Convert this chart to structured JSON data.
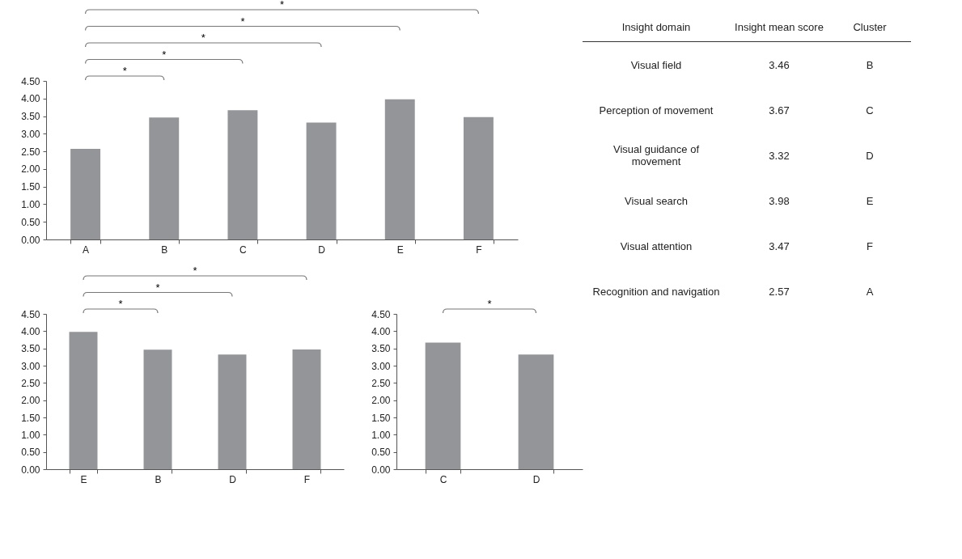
{
  "chart_data": [
    {
      "type": "bar",
      "categories": [
        "A",
        "B",
        "C",
        "D",
        "E",
        "F"
      ],
      "values": [
        2.57,
        3.46,
        3.67,
        3.32,
        3.98,
        3.47
      ],
      "color": "#939598",
      "ylim": [
        0,
        4.5
      ],
      "yticks": [
        {
          "value": 0,
          "label": "0.00"
        },
        {
          "value": 0.5,
          "label": "0.50"
        },
        {
          "value": 1,
          "label": "1.00"
        },
        {
          "value": 1.5,
          "label": "1.50"
        },
        {
          "value": 2,
          "label": "2.00"
        },
        {
          "value": 2.5,
          "label": "2.50"
        },
        {
          "value": 3,
          "label": "3.00"
        },
        {
          "value": 3.5,
          "label": "3.50"
        },
        {
          "value": 4,
          "label": "4.00"
        },
        {
          "value": 4.5,
          "label": "4.50"
        }
      ],
      "annotations": [
        "*",
        "*",
        "*",
        "*",
        "*"
      ]
    },
    {
      "type": "bar",
      "categories": [
        "E",
        "B",
        "D",
        "F"
      ],
      "values": [
        3.98,
        3.46,
        3.32,
        3.47
      ],
      "color": "#939598",
      "ylim": [
        0,
        4.5
      ],
      "yticks": [
        {
          "value": 0,
          "label": "0.00"
        },
        {
          "value": 0.5,
          "label": "0.50"
        },
        {
          "value": 1,
          "label": "1.00"
        },
        {
          "value": 1.5,
          "label": "1.50"
        },
        {
          "value": 2,
          "label": "2.00"
        },
        {
          "value": 2.5,
          "label": "2.50"
        },
        {
          "value": 3,
          "label": "3.00"
        },
        {
          "value": 3.5,
          "label": "3.50"
        },
        {
          "value": 4,
          "label": "4.00"
        },
        {
          "value": 4.5,
          "label": "4.50"
        }
      ],
      "annotations": [
        "*",
        "*",
        "*"
      ]
    },
    {
      "type": "bar",
      "categories": [
        "C",
        "D"
      ],
      "values": [
        3.67,
        3.32
      ],
      "color": "#939598",
      "ylim": [
        0,
        4.5
      ],
      "yticks": [
        {
          "value": 0,
          "label": "0.00"
        },
        {
          "value": 0.5,
          "label": "0.50"
        },
        {
          "value": 1,
          "label": "1.00"
        },
        {
          "value": 1.5,
          "label": "1.50"
        },
        {
          "value": 2,
          "label": "2.00"
        },
        {
          "value": 2.5,
          "label": "2.50"
        },
        {
          "value": 3,
          "label": "3.00"
        },
        {
          "value": 3.5,
          "label": "3.50"
        },
        {
          "value": 4,
          "label": "4.00"
        },
        {
          "value": 4.5,
          "label": "4.50"
        }
      ],
      "annotations": [
        "*"
      ]
    },
    {
      "type": "other",
      "annotations": [
        "Insight domain",
        "Insight mean score",
        "Cluster",
        "Visual field",
        "3.46",
        "B",
        "Perception of movement",
        "3.67",
        "C",
        "Visual guidance of movement",
        "3.32",
        "D",
        "Visual search",
        "3.98",
        "E",
        "Visual attention",
        "3.47",
        "F",
        "Recognition and navigation",
        "2.57",
        "A"
      ]
    }
  ]
}
